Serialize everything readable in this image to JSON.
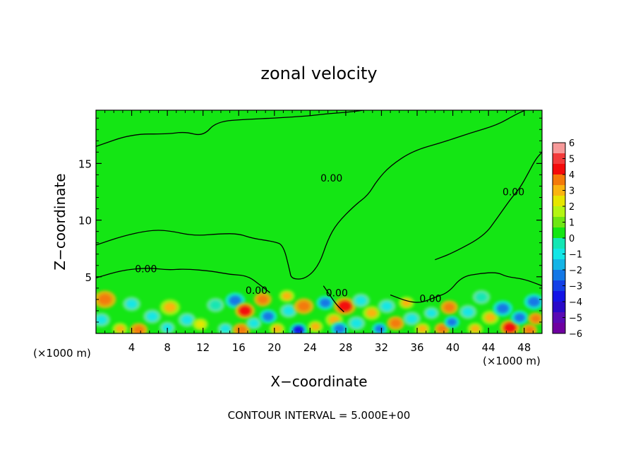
{
  "chart_data": {
    "type": "heatmap",
    "title": "zonal velocity",
    "xlabel": "X−coordinate",
    "ylabel": "Z−coordinate",
    "x_unit_left": "(×1000 m)",
    "x_unit_right": "(×1000 m)",
    "xlim": [
      0,
      50
    ],
    "ylim": [
      0,
      19.7
    ],
    "xticks": [
      4,
      8,
      12,
      16,
      20,
      24,
      28,
      32,
      36,
      40,
      44,
      48
    ],
    "yticks": [
      5,
      10,
      15
    ],
    "footer": "CONTOUR INTERVAL = 5.000E+00",
    "colorbar": {
      "labels": [
        "6",
        "5",
        "4",
        "3",
        "2",
        "1",
        "0",
        "−1",
        "−2",
        "−3",
        "−4",
        "−5",
        "−6"
      ],
      "colors": [
        "#f79a9a",
        "#f33a3a",
        "#f40a0a",
        "#f47a0a",
        "#fab410",
        "#e6e600",
        "#b4f514",
        "#6ee614",
        "#14e614",
        "#14e6b4",
        "#14e6e6",
        "#14b4e6",
        "#1478e6",
        "#1440e6",
        "#1414e6",
        "#2a0ac8",
        "#5a0ab4",
        "#6e00a0"
      ]
    },
    "contour_labels": [
      {
        "text": "0.00",
        "x": 5.6,
        "y": 5.7
      },
      {
        "text": "0.00",
        "x": 26.4,
        "y": 13.7
      },
      {
        "text": "0.00",
        "x": 46.8,
        "y": 12.5
      },
      {
        "text": "0.00",
        "x": 18.0,
        "y": 3.8
      },
      {
        "text": "0.00",
        "x": 27.0,
        "y": 3.6
      },
      {
        "text": "0.00",
        "x": 37.5,
        "y": 3.1
      }
    ],
    "contour_lines": [
      [
        [
          0,
          16.5
        ],
        [
          4,
          17.6
        ],
        [
          8,
          17.6
        ],
        [
          10,
          17.8
        ],
        [
          12,
          17.4
        ],
        [
          13.5,
          18.7
        ],
        [
          17,
          18.9
        ],
        [
          20,
          19.0
        ],
        [
          24,
          19.2
        ],
        [
          26,
          19.4
        ],
        [
          28,
          19.5
        ],
        [
          30,
          19.7
        ]
      ],
      [
        [
          0,
          7.8
        ],
        [
          3,
          8.6
        ],
        [
          6,
          9.1
        ],
        [
          8,
          9.1
        ],
        [
          11,
          8.6
        ],
        [
          14,
          8.8
        ],
        [
          16,
          8.8
        ],
        [
          17.5,
          8.4
        ],
        [
          20,
          8.1
        ],
        [
          21,
          7.8
        ],
        [
          21.7,
          5.6
        ],
        [
          21.9,
          4.8
        ],
        [
          23.5,
          4.8
        ],
        [
          25,
          6.0
        ],
        [
          26,
          8.3
        ],
        [
          27,
          9.7
        ],
        [
          29,
          11.3
        ],
        [
          30.5,
          12.2
        ],
        [
          31.5,
          13.5
        ],
        [
          33,
          14.8
        ],
        [
          35.5,
          16.1
        ],
        [
          39,
          16.9
        ],
        [
          42,
          17.7
        ],
        [
          45,
          18.4
        ],
        [
          47,
          19.3
        ],
        [
          48.1,
          19.7
        ]
      ],
      [
        [
          0,
          4.9
        ],
        [
          3,
          5.6
        ],
        [
          6,
          5.8
        ],
        [
          8,
          5.6
        ],
        [
          10,
          5.7
        ],
        [
          13,
          5.5
        ],
        [
          15,
          5.2
        ],
        [
          17,
          5.1
        ],
        [
          18.5,
          4.2
        ],
        [
          19.5,
          3.6
        ]
      ],
      [
        [
          38,
          6.5
        ],
        [
          40,
          7.1
        ],
        [
          43.5,
          8.6
        ],
        [
          45,
          10.2
        ],
        [
          46.5,
          11.9
        ],
        [
          47.5,
          12.8
        ],
        [
          48.5,
          14.2
        ],
        [
          49.3,
          15.4
        ],
        [
          50,
          16.0
        ]
      ],
      [
        [
          25.5,
          4.2
        ],
        [
          26.2,
          3.4
        ],
        [
          27.0,
          2.5
        ],
        [
          27.8,
          1.9
        ]
      ],
      [
        [
          33,
          3.4
        ],
        [
          35,
          2.8
        ],
        [
          36.5,
          2.7
        ],
        [
          38,
          3.2
        ],
        [
          39.5,
          3.6
        ],
        [
          41,
          5.0
        ],
        [
          43,
          5.3
        ],
        [
          45,
          5.4
        ],
        [
          46,
          5.0
        ],
        [
          48,
          4.8
        ],
        [
          50,
          4.2
        ]
      ]
    ],
    "blobs": [
      {
        "x": 1.0,
        "y": 3.0,
        "r": 1.0,
        "v": 3
      },
      {
        "x": 0.6,
        "y": 1.2,
        "r": 0.8,
        "v": -2
      },
      {
        "x": 2.7,
        "y": 0.4,
        "r": 0.7,
        "v": 2
      },
      {
        "x": 4.0,
        "y": 2.6,
        "r": 0.8,
        "v": -2
      },
      {
        "x": 4.8,
        "y": 0.3,
        "r": 0.8,
        "v": 3
      },
      {
        "x": 6.3,
        "y": 1.5,
        "r": 0.8,
        "v": -2
      },
      {
        "x": 8.3,
        "y": 2.3,
        "r": 0.9,
        "v": 2
      },
      {
        "x": 8.0,
        "y": 0.5,
        "r": 0.7,
        "v": -2
      },
      {
        "x": 10.2,
        "y": 1.2,
        "r": 0.8,
        "v": -2
      },
      {
        "x": 11.7,
        "y": 0.8,
        "r": 0.7,
        "v": 1
      },
      {
        "x": 13.4,
        "y": 2.5,
        "r": 0.8,
        "v": -1
      },
      {
        "x": 14.5,
        "y": 0.4,
        "r": 0.7,
        "v": -2
      },
      {
        "x": 15.6,
        "y": 2.9,
        "r": 0.9,
        "v": -3
      },
      {
        "x": 16.7,
        "y": 2.0,
        "r": 0.9,
        "v": 4
      },
      {
        "x": 16.3,
        "y": 0.3,
        "r": 0.8,
        "v": 3
      },
      {
        "x": 17.7,
        "y": 0.9,
        "r": 0.7,
        "v": -2
      },
      {
        "x": 18.7,
        "y": 3.0,
        "r": 0.8,
        "v": 3
      },
      {
        "x": 19.3,
        "y": 1.5,
        "r": 0.8,
        "v": -3
      },
      {
        "x": 20.3,
        "y": 0.4,
        "r": 0.7,
        "v": 2
      },
      {
        "x": 21.4,
        "y": 3.3,
        "r": 0.7,
        "v": 2
      },
      {
        "x": 21.6,
        "y": 2.0,
        "r": 0.8,
        "v": -2
      },
      {
        "x": 22.7,
        "y": 0.3,
        "r": 0.8,
        "v": -4
      },
      {
        "x": 23.3,
        "y": 2.4,
        "r": 0.9,
        "v": 3
      },
      {
        "x": 24.6,
        "y": 0.6,
        "r": 0.7,
        "v": 2
      },
      {
        "x": 25.7,
        "y": 2.7,
        "r": 0.8,
        "v": -3
      },
      {
        "x": 26.7,
        "y": 1.2,
        "r": 0.8,
        "v": 2
      },
      {
        "x": 27.9,
        "y": 2.4,
        "r": 1.0,
        "v": 4
      },
      {
        "x": 27.3,
        "y": 0.4,
        "r": 0.8,
        "v": -3
      },
      {
        "x": 29.2,
        "y": 0.9,
        "r": 0.8,
        "v": -2
      },
      {
        "x": 29.7,
        "y": 2.9,
        "r": 0.8,
        "v": -2
      },
      {
        "x": 30.9,
        "y": 1.8,
        "r": 0.8,
        "v": 2
      },
      {
        "x": 31.8,
        "y": 0.4,
        "r": 0.7,
        "v": -3
      },
      {
        "x": 32.6,
        "y": 2.4,
        "r": 0.8,
        "v": -2
      },
      {
        "x": 33.6,
        "y": 0.9,
        "r": 0.8,
        "v": 3
      },
      {
        "x": 34.8,
        "y": 2.7,
        "r": 0.7,
        "v": 2
      },
      {
        "x": 35.4,
        "y": 1.3,
        "r": 0.8,
        "v": -2
      },
      {
        "x": 36.6,
        "y": 0.4,
        "r": 0.7,
        "v": 2
      },
      {
        "x": 37.6,
        "y": 1.8,
        "r": 0.7,
        "v": -2
      },
      {
        "x": 38.8,
        "y": 0.4,
        "r": 0.7,
        "v": 3
      },
      {
        "x": 39.6,
        "y": 2.3,
        "r": 0.8,
        "v": 3
      },
      {
        "x": 39.9,
        "y": 1.0,
        "r": 0.7,
        "v": -3
      },
      {
        "x": 41.7,
        "y": 1.9,
        "r": 0.8,
        "v": -2
      },
      {
        "x": 42.5,
        "y": 0.4,
        "r": 0.7,
        "v": 2
      },
      {
        "x": 43.2,
        "y": 3.2,
        "r": 0.8,
        "v": -1
      },
      {
        "x": 44.2,
        "y": 1.4,
        "r": 0.8,
        "v": 2
      },
      {
        "x": 45.6,
        "y": 2.2,
        "r": 0.9,
        "v": -3
      },
      {
        "x": 46.4,
        "y": 0.5,
        "r": 0.9,
        "v": 4
      },
      {
        "x": 47.5,
        "y": 1.4,
        "r": 0.8,
        "v": -3
      },
      {
        "x": 48.6,
        "y": 0.3,
        "r": 0.7,
        "v": 3
      },
      {
        "x": 49.1,
        "y": 2.8,
        "r": 0.9,
        "v": -3
      },
      {
        "x": 49.3,
        "y": 1.3,
        "r": 0.7,
        "v": 3
      }
    ]
  }
}
